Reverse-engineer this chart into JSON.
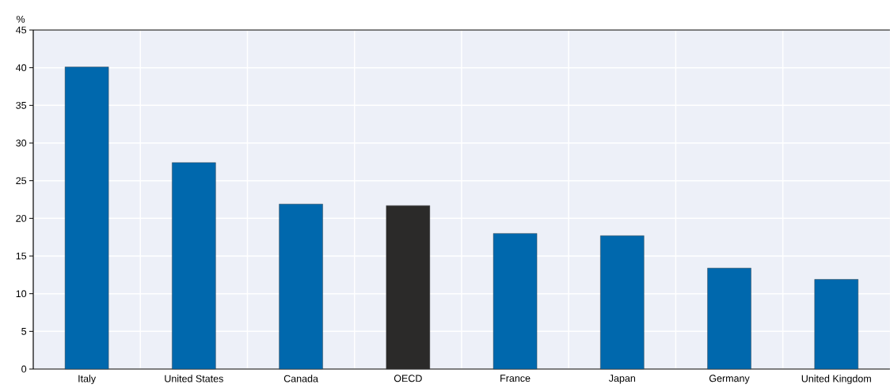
{
  "chart_data": {
    "type": "bar",
    "ylabel": "%",
    "categories": [
      "Italy",
      "United States",
      "Canada",
      "OECD",
      "France",
      "Japan",
      "Germany",
      "United Kingdom"
    ],
    "values": [
      40.1,
      27.4,
      21.9,
      21.7,
      18.0,
      17.7,
      13.4,
      11.9
    ],
    "colors": [
      "#0068ad",
      "#0068ad",
      "#0068ad",
      "#2b2a29",
      "#0068ad",
      "#0068ad",
      "#0068ad",
      "#0068ad"
    ],
    "ylim": [
      0,
      45
    ],
    "yticks": [
      0,
      5,
      10,
      15,
      20,
      25,
      30,
      35,
      40,
      45
    ],
    "grid": true
  }
}
